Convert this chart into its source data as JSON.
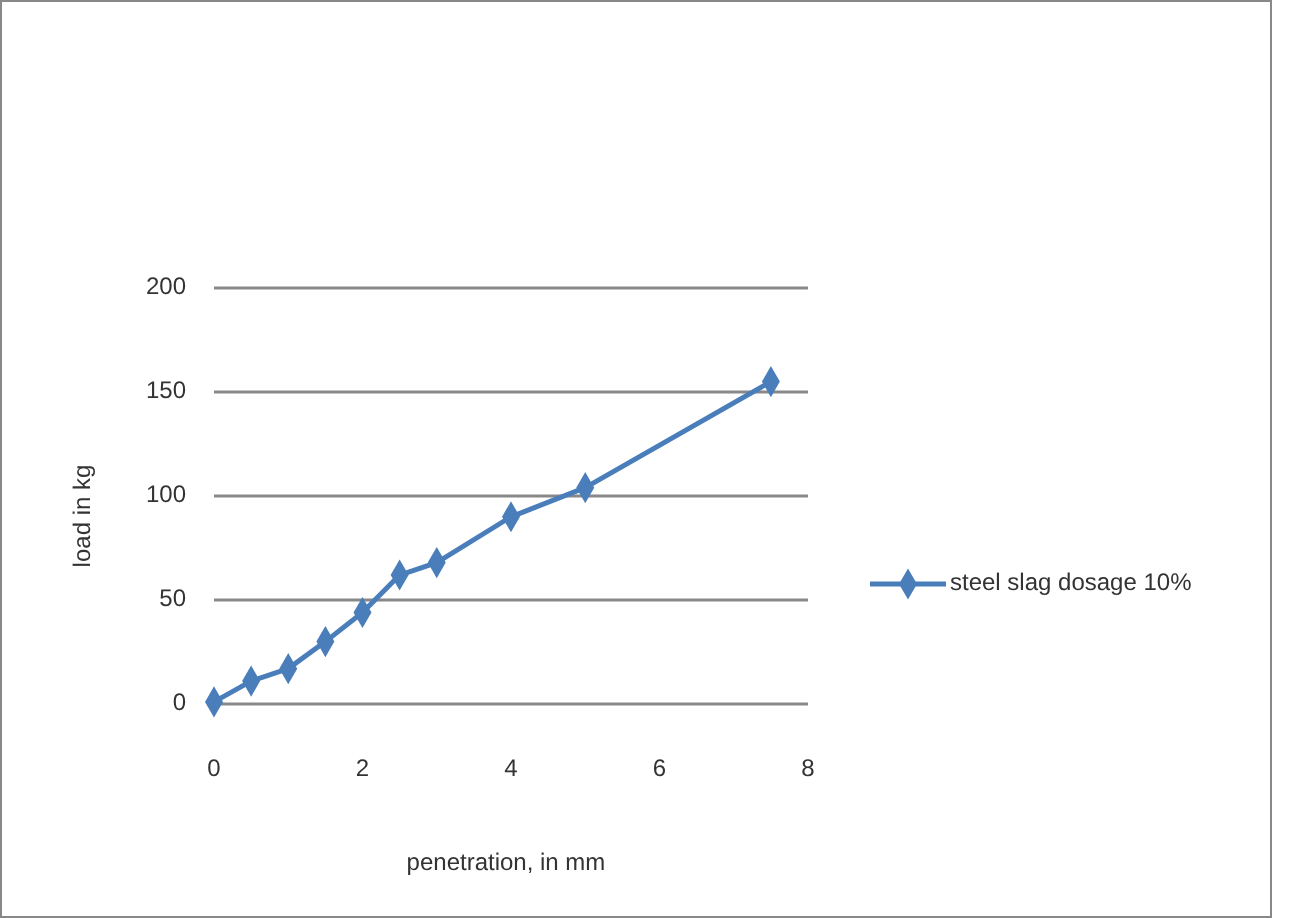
{
  "chart_data": {
    "type": "line",
    "xlabel": "penetration, in mm",
    "ylabel": "load in kg",
    "x": [
      0,
      0.5,
      1,
      1.5,
      2,
      2.5,
      3,
      4,
      5,
      7.5
    ],
    "series": [
      {
        "name": "steel slag dosage 10%",
        "color": "#4a7ebb",
        "values": [
          1,
          11,
          17,
          30,
          44,
          62,
          68,
          90,
          104,
          155
        ]
      }
    ],
    "xlim": [
      0,
      8
    ],
    "xticks": [
      0,
      2,
      4,
      6,
      8
    ],
    "ylim": [
      0,
      200
    ],
    "yticks": [
      0,
      50,
      100,
      150,
      200
    ],
    "grid": "y",
    "legend": "right",
    "marker": "diamond",
    "line_style": "solid"
  }
}
